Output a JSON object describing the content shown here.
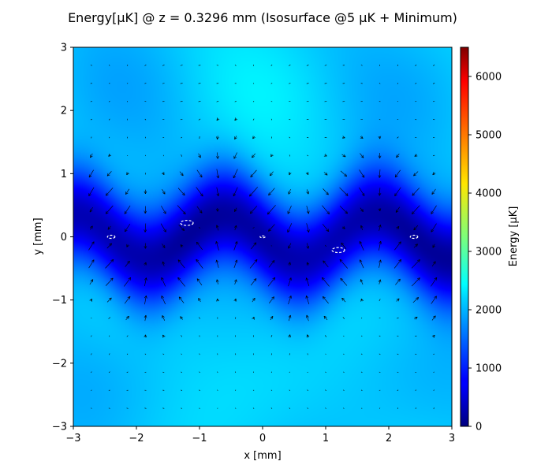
{
  "chart_data": {
    "type": "heatmap",
    "title": "Energy[μK] @ z = 0.3296 mm (Isosurface @5 μK + Minimum)",
    "xlabel": "x [mm]",
    "ylabel": "y [mm]",
    "xlim": [
      -3,
      3
    ],
    "ylim": [
      -3,
      3
    ],
    "x_ticks": [
      "−3",
      "−2",
      "−1",
      "0",
      "1",
      "2",
      "3"
    ],
    "y_ticks": [
      "−3",
      "−2",
      "−1",
      "0",
      "1",
      "2",
      "3"
    ],
    "colorbar": {
      "label": "Energy [μK]",
      "colormap": "jet",
      "range": [
        0,
        6500
      ],
      "ticks": [
        "0",
        "1000",
        "2000",
        "3000",
        "4000",
        "5000",
        "6000"
      ]
    },
    "field": {
      "background_energy": 2100,
      "trough_center_amplitude": 0.35,
      "trough_halfwidth": 0.75,
      "trough_depth": 1850,
      "wave_period": 2.4,
      "arrow_count": 20
    },
    "isosurface_contours": [
      {
        "x": -2.4,
        "y": 0.0,
        "rx": 0.06,
        "ry": 0.025
      },
      {
        "x": -1.2,
        "y": 0.22,
        "rx": 0.1,
        "ry": 0.04
      },
      {
        "x": 0.0,
        "y": 0.0,
        "rx": 0.04,
        "ry": 0.015
      },
      {
        "x": 1.2,
        "y": -0.21,
        "rx": 0.1,
        "ry": 0.04
      },
      {
        "x": 2.4,
        "y": 0.0,
        "rx": 0.06,
        "ry": 0.025
      }
    ]
  }
}
